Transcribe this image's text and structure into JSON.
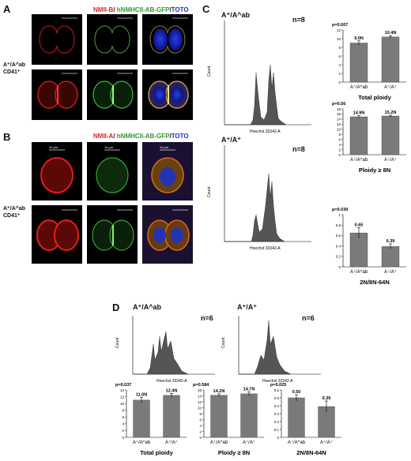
{
  "panels": {
    "a": "A",
    "b": "B",
    "c": "C",
    "d": "D"
  },
  "stains": {
    "a": {
      "red": "NMII-B",
      "sep": "/ ",
      "green": "hNMHCII-AB-GFP",
      "slash": "/",
      "blue": "TOTO"
    },
    "b": {
      "red": "NMII-A",
      "sep": "/ ",
      "green": "hNMHCII-AB-GFP",
      "slash": "/",
      "blue": "TOTO"
    }
  },
  "genotype_row": {
    "line1": "A⁺/A^ab",
    "line2": "CD41⁺"
  },
  "scale_bar": "10 μm",
  "c": {
    "hist_top": {
      "genotype": "A⁺/A^ab",
      "n": "n=8"
    },
    "hist_bottom": {
      "genotype": "A⁺/A⁺",
      "n": "n=8"
    },
    "hist_axis": {
      "ylabel": "Count",
      "xlabel": "Hoechst 33342-A",
      "xticks": [
        "10³",
        "10⁴",
        "10⁵"
      ]
    }
  },
  "d": {
    "hist_left": {
      "genotype": "A⁺/A^ab",
      "n": "n=6"
    },
    "hist_right": {
      "genotype": "A⁺/A⁺",
      "n": "n=6"
    }
  },
  "chart_data": [
    {
      "id": "c_total",
      "type": "bar",
      "title": "Total ploidy",
      "p": "p=0.007",
      "categories": [
        "A⁺/A^ab",
        "A⁺/A⁺"
      ],
      "values": [
        9.0,
        10.4
      ],
      "labels": [
        "9.0N",
        "10.4N"
      ],
      "errors": [
        0.5,
        0.3
      ],
      "ylim": [
        0,
        12
      ],
      "yticks": [
        "0",
        "2",
        "4",
        "6",
        "8",
        "10",
        "12"
      ]
    },
    {
      "id": "c_8n",
      "type": "bar",
      "title": "Ploidy ≥ 8N",
      "p": "p=0.56",
      "categories": [
        "A⁺/A^ab",
        "A⁺/A⁺"
      ],
      "values": [
        14.9,
        15.2
      ],
      "labels": [
        "14.9N",
        "15.2N"
      ],
      "errors": [
        0.4,
        0.3
      ],
      "ylim": [
        0,
        18
      ],
      "yticks": [
        "0",
        "2",
        "4",
        "6",
        "8",
        "10",
        "12",
        "14",
        "16",
        "18"
      ]
    },
    {
      "id": "c_ratio",
      "type": "bar",
      "title": "2N/8N-64N",
      "p": "p=0.039",
      "categories": [
        "A⁺/A^ab",
        "A⁺/A⁺"
      ],
      "values": [
        0.65,
        0.39
      ],
      "labels": [
        "0.65",
        "0.39"
      ],
      "errors": [
        0.1,
        0.05
      ],
      "ylim": [
        0,
        1
      ],
      "yticks": [
        "0",
        "0.2",
        "0.4",
        "0.6",
        "0.8",
        "1"
      ]
    },
    {
      "id": "d_total",
      "type": "bar",
      "title": "Total ploidy",
      "p": "p=0.037",
      "categories": [
        "A⁺/A^ab",
        "A⁺/A⁺"
      ],
      "values": [
        11.0,
        12.4
      ],
      "labels": [
        "11.0N",
        "12.4N"
      ],
      "errors": [
        0.8,
        0.6
      ],
      "ylim": [
        0,
        14
      ],
      "yticks": [
        "0",
        "2",
        "4",
        "6",
        "8",
        "10",
        "12",
        "14"
      ]
    },
    {
      "id": "d_8n",
      "type": "bar",
      "title": "Ploidy ≥ 8N",
      "p": "p=0.584",
      "categories": [
        "A⁺/A^ab",
        "A⁺/A⁺"
      ],
      "values": [
        14.2,
        14.7
      ],
      "labels": [
        "14.2N",
        "14.7N"
      ],
      "errors": [
        0.5,
        0.6
      ],
      "ylim": [
        0,
        16
      ],
      "yticks": [
        "0",
        "2",
        "4",
        "6",
        "8",
        "10",
        "12",
        "14",
        "16"
      ]
    },
    {
      "id": "d_ratio",
      "type": "bar",
      "title": "2N/8N-64N",
      "p": "p=0.025",
      "categories": [
        "A⁺/A^ab",
        "A⁺/A⁺"
      ],
      "values": [
        0.5,
        0.39
      ],
      "labels": [
        "0.50",
        "0.39"
      ],
      "errors": [
        0.04,
        0.07
      ],
      "ylim": [
        0,
        0.6
      ],
      "yticks": [
        "0",
        "0.1",
        "0.2",
        "0.3",
        "0.4",
        "0.5",
        "0.6"
      ]
    }
  ]
}
